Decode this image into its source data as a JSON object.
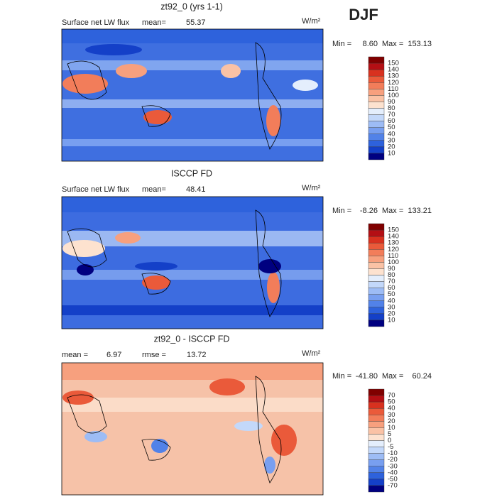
{
  "header": {
    "season": "DJF"
  },
  "panels": [
    {
      "title": "zt92_0 (yrs 1-1)",
      "field": "Surface net LW flux",
      "stats": [
        {
          "label": "mean=",
          "value": "55.37"
        }
      ],
      "units": "W/m²",
      "range": {
        "min_label": "Min =",
        "min": "8.60",
        "max_label": "Max =",
        "max": "153.13"
      },
      "colorbar": {
        "labels": [
          150,
          140,
          130,
          120,
          110,
          100,
          90,
          80,
          70,
          60,
          50,
          40,
          30,
          20,
          10
        ],
        "colors": [
          "#800000",
          "#b40f14",
          "#d8311f",
          "#ea5a3a",
          "#f27d5a",
          "#f7a07e",
          "#fac2a5",
          "#fde2cf",
          "#e4eefc",
          "#c3d8fa",
          "#9dbcf5",
          "#789ff0",
          "#5282e8",
          "#2e62dc",
          "#1440c8",
          "#000080"
        ]
      }
    },
    {
      "title": "ISCCP FD",
      "field": "Surface net LW flux",
      "stats": [
        {
          "label": "mean=",
          "value": "48.41"
        }
      ],
      "units": "W/m²",
      "range": {
        "min_label": "Min =",
        "min": "-8.26",
        "max_label": "Max =",
        "max": "133.21"
      },
      "colorbar": {
        "labels": [
          150,
          140,
          130,
          120,
          110,
          100,
          90,
          80,
          70,
          60,
          50,
          40,
          30,
          20,
          10
        ],
        "colors": [
          "#800000",
          "#b40f14",
          "#d8311f",
          "#ea5a3a",
          "#f27d5a",
          "#f7a07e",
          "#fac2a5",
          "#fde2cf",
          "#e4eefc",
          "#c3d8fa",
          "#9dbcf5",
          "#789ff0",
          "#5282e8",
          "#2e62dc",
          "#1440c8",
          "#000080"
        ]
      }
    },
    {
      "title": "zt92_0 - ISCCP FD",
      "stats": [
        {
          "label": "mean =",
          "value": "6.97"
        },
        {
          "label": "rmse =",
          "value": "13.72"
        }
      ],
      "units": "W/m²",
      "range": {
        "min_label": "Min =",
        "min": "-41.80",
        "max_label": "Max =",
        "max": "60.24"
      },
      "colorbar": {
        "labels": [
          70,
          50,
          40,
          30,
          20,
          10,
          5,
          0,
          -5,
          -10,
          -20,
          -30,
          -40,
          -50,
          -70
        ],
        "colors": [
          "#800000",
          "#b40f14",
          "#d8311f",
          "#ea5a3a",
          "#f27d5a",
          "#f7a07e",
          "#fac2a5",
          "#fde2cf",
          "#e4eefc",
          "#c3d8fa",
          "#9dbcf5",
          "#789ff0",
          "#5282e8",
          "#2e62dc",
          "#1440c8",
          "#000080"
        ]
      }
    }
  ]
}
